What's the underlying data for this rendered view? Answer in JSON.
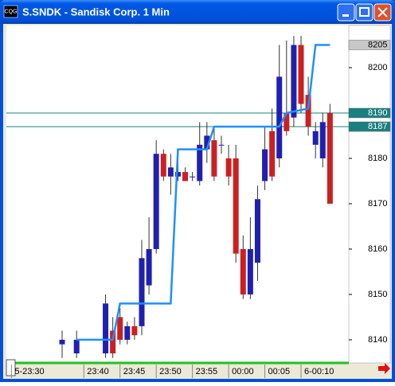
{
  "window": {
    "title": "S.SNDK - Sandisk Corp. 1 Min",
    "icon": "CQG"
  },
  "chart_data": {
    "type": "candlestick",
    "up_color": "#2020b0",
    "down_color": "#cc2020",
    "x": [
      7,
      9,
      13,
      14,
      15,
      16,
      17,
      18,
      19,
      20,
      21,
      22,
      23,
      24,
      25,
      26,
      27,
      28,
      29,
      30,
      31,
      32,
      33,
      34,
      35,
      36,
      37,
      38,
      39,
      40,
      41,
      42,
      43,
      44
    ],
    "open": [
      8139,
      8137,
      8137,
      8142,
      8145,
      8140,
      8143,
      8143,
      8152,
      8160,
      8181,
      8176,
      8176,
      8177,
      8176,
      8175,
      8182,
      8184,
      8183,
      8180,
      8180,
      8160,
      8150,
      8157,
      8175,
      8186,
      8180,
      8190,
      8189,
      8205,
      8194,
      8183,
      8180,
      8190
    ],
    "high": [
      8142,
      8142,
      8150,
      8145,
      8147,
      8144,
      8145,
      8162,
      8167,
      8184,
      8182,
      8181,
      8182,
      8178,
      8177,
      8188,
      8188,
      8187,
      8185,
      8183,
      8183,
      8163,
      8167,
      8174,
      8187,
      8191,
      8205,
      8206,
      8207,
      8207,
      8198,
      8188,
      8190,
      8192
    ],
    "low": [
      8136,
      8136,
      8136,
      8136,
      8139,
      8139,
      8140,
      8141,
      8150,
      8159,
      8175,
      8172,
      8175,
      8175,
      8175,
      8174,
      8179,
      8175,
      8181,
      8174,
      8157,
      8149,
      8149,
      8153,
      8173,
      8175,
      8178,
      8185,
      8187,
      8190,
      8185,
      8180,
      8178,
      8170
    ],
    "close": [
      8140,
      8140,
      8148,
      8137,
      8140,
      8143,
      8141,
      8158,
      8160,
      8181,
      8176,
      8178,
      8177,
      8175,
      8176,
      8183,
      8185,
      8176,
      8183,
      8176,
      8159,
      8150,
      8160,
      8171,
      8182,
      8176,
      8198,
      8186,
      8205,
      8192,
      8187,
      8186,
      8188,
      8170
    ],
    "line": {
      "color": "#1e90ff",
      "x": [
        9,
        14,
        15,
        22,
        23,
        27,
        28,
        37,
        38,
        41,
        42,
        44
      ],
      "values": [
        8140,
        8140,
        8148,
        8148,
        8182,
        8182,
        8187,
        8187,
        8190,
        8191,
        8205,
        8205
      ]
    },
    "levels": [
      {
        "value": 8205,
        "line": false,
        "color": "#c8c8c8",
        "text_color": "#000000"
      },
      {
        "value": 8190,
        "line": true,
        "color": "#1a7f7f",
        "text_color": "#ffffff"
      },
      {
        "value": 8187,
        "line": true,
        "color": "#1a7f7f",
        "text_color": "#ffffff"
      }
    ],
    "xlim": [
      -0.7,
      46.6
    ],
    "xticks": [
      {
        "value": 0,
        "label": "5-23:30"
      },
      {
        "value": 10,
        "label": "23:40"
      },
      {
        "value": 15,
        "label": "23:45"
      },
      {
        "value": 20,
        "label": "23:50"
      },
      {
        "value": 25,
        "label": "23:55"
      },
      {
        "value": 30,
        "label": "00:00"
      },
      {
        "value": 35,
        "label": "00:05"
      },
      {
        "value": 40,
        "label": "6-00:10"
      }
    ],
    "ylim": [
      8134.9,
      8209.3
    ],
    "yticks": [
      8140,
      8150,
      8160,
      8170,
      8180,
      8190,
      8200
    ],
    "grid": false
  }
}
